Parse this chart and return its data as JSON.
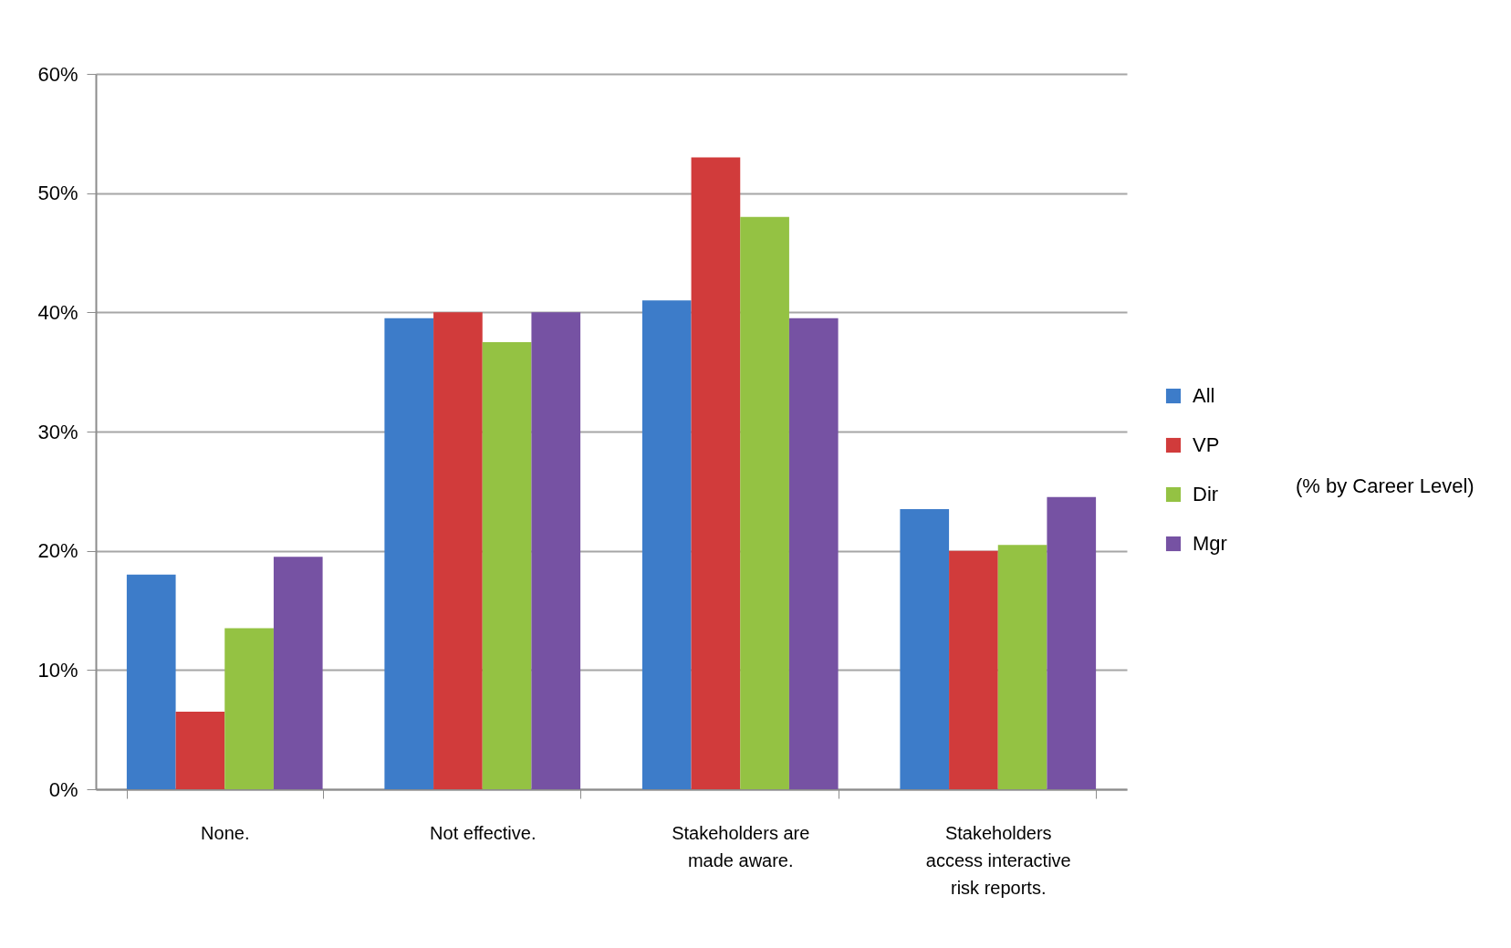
{
  "chart_data": {
    "type": "bar",
    "categories": [
      "None.",
      "Not effective.",
      "Stakeholders are made aware.",
      "Stakeholders access interactive risk reports."
    ],
    "series": [
      {
        "name": "All",
        "color": "#3d7cc9",
        "values": [
          18,
          39.5,
          41,
          23.5
        ]
      },
      {
        "name": "VP",
        "color": "#d13b3b",
        "values": [
          6.5,
          40,
          53,
          20
        ]
      },
      {
        "name": "Dir",
        "color": "#94c243",
        "values": [
          13.5,
          37.5,
          48,
          20.5
        ]
      },
      {
        "name": "Mgr",
        "color": "#7652a3",
        "values": [
          19.5,
          40,
          39.5,
          24.5
        ]
      }
    ],
    "ylim": [
      0,
      60
    ],
    "yticks": [
      {
        "value": 0,
        "label": "0%"
      },
      {
        "value": 10,
        "label": "10%"
      },
      {
        "value": 20,
        "label": "20%"
      },
      {
        "value": 30,
        "label": "30%"
      },
      {
        "value": 40,
        "label": "40%"
      },
      {
        "value": 50,
        "label": "50%"
      },
      {
        "value": 60,
        "label": "60%"
      }
    ],
    "grid": "y",
    "legend": "right",
    "annotations": [
      "(% by Career Level)"
    ]
  }
}
